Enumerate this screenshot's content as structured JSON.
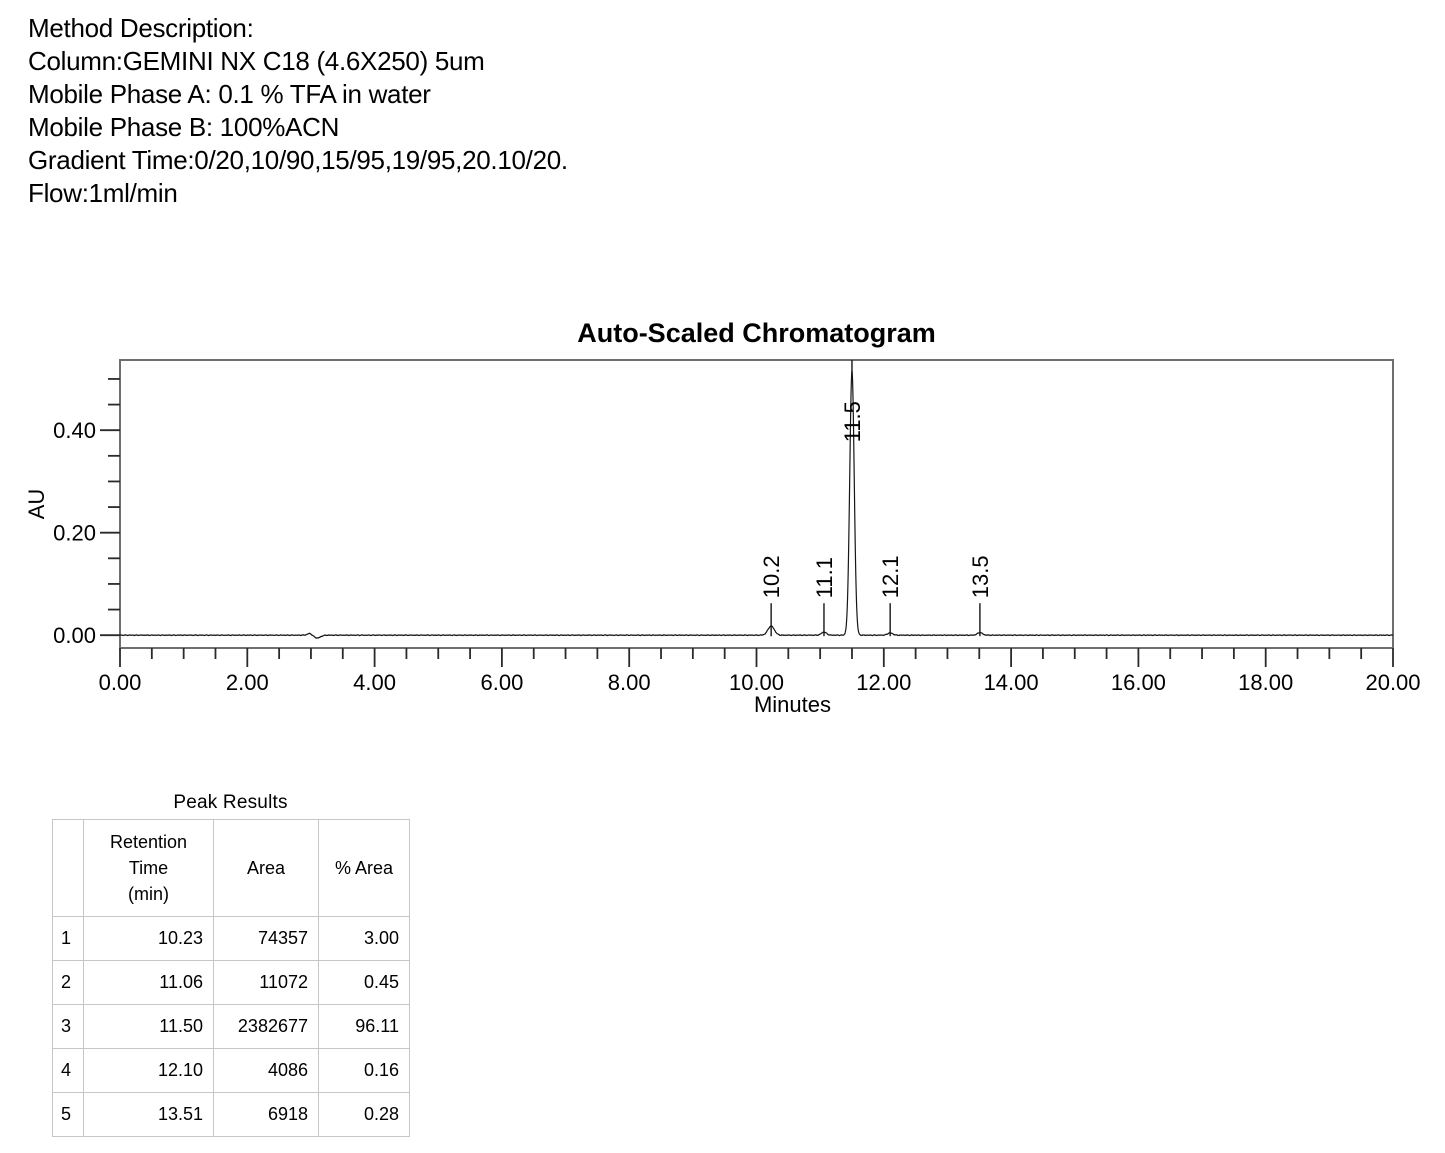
{
  "method": {
    "lines": [
      "Method Description:",
      "Column:GEMINI NX C18 (4.6X250) 5um",
      "Mobile Phase A: 0.1 % TFA in water",
      "Mobile Phase B: 100%ACN",
      "Gradient Time:0/20,10/90,15/95,19/95,20.10/20.",
      "Flow:1ml/min"
    ]
  },
  "chart_data": {
    "type": "line",
    "title": "Auto-Scaled Chromatogram",
    "xlabel": "Minutes",
    "ylabel": "AU",
    "xlim": [
      0,
      20
    ],
    "ylim": [
      -0.025,
      0.537
    ],
    "grid": false,
    "x_major_ticks": [
      0,
      2,
      4,
      6,
      8,
      10,
      12,
      14,
      16,
      18,
      20
    ],
    "x_tick_labels": [
      "0.00",
      "2.00",
      "4.00",
      "6.00",
      "8.00",
      "10.00",
      "12.00",
      "14.00",
      "16.00",
      "18.00",
      "20.00"
    ],
    "x_minor_tick_step": 0.5,
    "y_major_ticks": [
      0.0,
      0.2,
      0.4
    ],
    "y_tick_labels": [
      "0.00",
      "0.20",
      "0.40"
    ],
    "y_minor_tick_step": 0.05,
    "series_name": "detector-signal",
    "peaks": [
      {
        "label": "10.2",
        "retention_time": 10.23,
        "height_au": 0.018,
        "sigma_min": 0.05,
        "int_start": 10.08,
        "int_end": 10.4
      },
      {
        "label": "11.1",
        "retention_time": 11.06,
        "height_au": 0.006,
        "sigma_min": 0.04,
        "int_start": 10.97,
        "int_end": 11.17
      },
      {
        "label": "11.5",
        "retention_time": 11.5,
        "height_au": 0.515,
        "sigma_min": 0.035,
        "int_start": 11.38,
        "int_end": 11.78
      },
      {
        "label": "12.1",
        "retention_time": 12.1,
        "height_au": 0.0045,
        "sigma_min": 0.04,
        "int_start": 11.96,
        "int_end": 12.16
      },
      {
        "label": "13.5",
        "retention_time": 13.51,
        "height_au": 0.005,
        "sigma_min": 0.04,
        "int_start": 13.35,
        "int_end": 13.68
      }
    ],
    "baseline_artifact": {
      "time_min": 3.05,
      "amplitude_au": 0.005
    }
  },
  "table": {
    "title": "Peak Results",
    "columns": [
      {
        "lines": [
          ""
        ]
      },
      {
        "lines": [
          "Retention",
          "Time",
          "(min)"
        ]
      },
      {
        "lines": [
          "Area"
        ]
      },
      {
        "lines": [
          "% Area"
        ]
      }
    ],
    "rows": [
      [
        "1",
        "10.23",
        "74357",
        "3.00"
      ],
      [
        "2",
        "11.06",
        "11072",
        "0.45"
      ],
      [
        "3",
        "11.50",
        "2382677",
        "96.11"
      ],
      [
        "4",
        "12.10",
        "4086",
        "0.16"
      ],
      [
        "5",
        "13.51",
        "6918",
        "0.28"
      ]
    ]
  },
  "colors": {
    "text": "#000000",
    "plot_border": "#6e6e6e",
    "curve": "#161616",
    "tick": "#2a2a2a",
    "table_border": "#c6c6c6",
    "background": "#ffffff"
  }
}
